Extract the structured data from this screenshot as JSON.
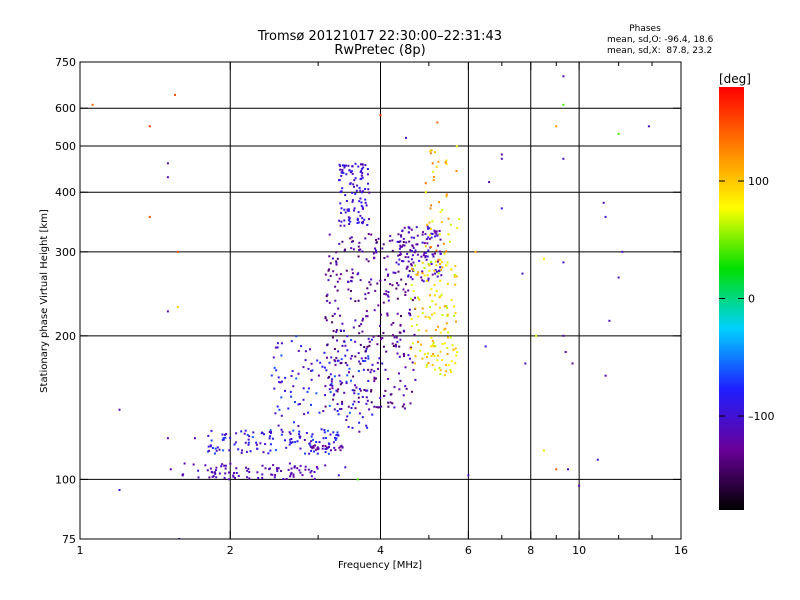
{
  "chart_data": {
    "type": "scatter",
    "title": "Tromsø 20121017 22:30:00–22:31:43",
    "subtitle": "RwPretec (8p)",
    "xlabel": "Frequency [MHz]",
    "ylabel": "Stationary phase Virtual Height [km]",
    "x_scale": "log",
    "y_scale": "log",
    "xlim": [
      1,
      16
    ],
    "ylim": [
      75,
      750
    ],
    "x_ticks": [
      1,
      2,
      4,
      6,
      8,
      10,
      16
    ],
    "x_tick_labels": [
      "1",
      "2",
      "4",
      "6",
      "8",
      "10",
      "16"
    ],
    "x_minor_ticks": [
      3,
      5,
      7,
      9,
      12,
      14
    ],
    "x_gridlines": [
      2,
      4,
      6,
      8,
      10
    ],
    "y_ticks": [
      75,
      100,
      200,
      300,
      400,
      500,
      600,
      750
    ],
    "y_tick_labels": [
      "75",
      "100",
      "200",
      "300",
      "400",
      "500",
      "600",
      "750"
    ],
    "y_gridlines": [
      100,
      200,
      300,
      400,
      500,
      600
    ],
    "grid": true,
    "stats": {
      "heading": "Phases",
      "line_o": "mean, sd,O: -96.4, 18.6",
      "line_x": "mean, sd,X:  87.8, 23.2"
    },
    "colorbar": {
      "label": "[deg]",
      "range": [
        -180,
        180
      ],
      "ticks": [
        100,
        0,
        -100
      ],
      "tick_labels": [
        "100",
        "0",
        "–100"
      ],
      "colormap": "rainbow",
      "stops": [
        "#000000",
        "#6a0099",
        "#1f1fff",
        "#00d0ff",
        "#00e000",
        "#ffff00",
        "#ff8000",
        "#ff0000"
      ]
    },
    "clusters": [
      {
        "count": 90,
        "fmin": 1.6,
        "fmax": 3.0,
        "hmin": 100,
        "hmax": 108,
        "pmin": -125,
        "pmax": -105
      },
      {
        "count": 120,
        "fmin": 1.8,
        "fmax": 3.3,
        "hmin": 113,
        "hmax": 127,
        "pmin": -120,
        "pmax": -60
      },
      {
        "count": 140,
        "fmin": 2.4,
        "fmax": 3.9,
        "hmin": 125,
        "hmax": 200,
        "pmin": -120,
        "pmax": -55
      },
      {
        "count": 330,
        "fmin": 3.1,
        "fmax": 4.7,
        "hmin": 140,
        "hmax": 330,
        "pmin": -150,
        "pmax": -100
      },
      {
        "count": 110,
        "fmin": 3.3,
        "fmax": 3.8,
        "hmin": 340,
        "hmax": 460,
        "pmin": -120,
        "pmax": -80
      },
      {
        "count": 110,
        "fmin": 4.3,
        "fmax": 5.3,
        "hmin": 260,
        "hmax": 340,
        "pmin": -130,
        "pmax": -90
      },
      {
        "count": 140,
        "fmin": 4.6,
        "fmax": 5.7,
        "hmin": 165,
        "hmax": 290,
        "pmin": 60,
        "pmax": 120
      },
      {
        "count": 45,
        "fmin": 4.9,
        "fmax": 5.8,
        "hmin": 280,
        "hmax": 500,
        "pmin": 60,
        "pmax": 140
      },
      {
        "count": 25,
        "fmin": 2.9,
        "fmax": 3.4,
        "hmin": 115,
        "hmax": 118,
        "pmin": -140,
        "pmax": -110
      }
    ],
    "isolated_points": [
      [
        1.06,
        610,
        140
      ],
      [
        1.2,
        95,
        -100
      ],
      [
        1.38,
        550,
        160
      ],
      [
        1.38,
        355,
        150
      ],
      [
        1.5,
        460,
        -120
      ],
      [
        1.5,
        430,
        -110
      ],
      [
        1.5,
        225,
        -120
      ],
      [
        1.5,
        122,
        -110
      ],
      [
        1.52,
        105,
        -120
      ],
      [
        1.55,
        640,
        150
      ],
      [
        1.57,
        300,
        150
      ],
      [
        1.57,
        230,
        100
      ],
      [
        1.58,
        75,
        -100
      ],
      [
        1.62,
        108,
        -120
      ],
      [
        1.7,
        122,
        -120
      ],
      [
        1.2,
        140,
        -120
      ],
      [
        3.1,
        107,
        -110
      ],
      [
        3.4,
        106,
        -100
      ],
      [
        3.6,
        100,
        40
      ],
      [
        3.3,
        102,
        -100
      ],
      [
        4.5,
        520,
        -110
      ],
      [
        4.0,
        580,
        160
      ],
      [
        5.2,
        560,
        140
      ],
      [
        6.0,
        102,
        -110
      ],
      [
        6.2,
        300,
        110
      ],
      [
        6.5,
        190,
        -100
      ],
      [
        7.0,
        480,
        -120
      ],
      [
        7.0,
        470,
        -110
      ],
      [
        7.0,
        370,
        -100
      ],
      [
        6.6,
        420,
        -120
      ],
      [
        7.7,
        270,
        -110
      ],
      [
        7.8,
        175,
        -110
      ],
      [
        8.2,
        200,
        70
      ],
      [
        8.5,
        290,
        80
      ],
      [
        8.5,
        115,
        90
      ],
      [
        9.0,
        105,
        150
      ],
      [
        9.0,
        550,
        120
      ],
      [
        9.3,
        700,
        -110
      ],
      [
        9.3,
        610,
        40
      ],
      [
        9.3,
        470,
        -110
      ],
      [
        9.3,
        285,
        -100
      ],
      [
        9.3,
        200,
        -110
      ],
      [
        9.4,
        185,
        -120
      ],
      [
        9.5,
        105,
        -110
      ],
      [
        9.7,
        175,
        -120
      ],
      [
        10.0,
        97,
        -120
      ],
      [
        11.2,
        380,
        -110
      ],
      [
        11.3,
        355,
        -100
      ],
      [
        11.5,
        215,
        -110
      ],
      [
        11.3,
        165,
        -120
      ],
      [
        12.2,
        300,
        -110
      ],
      [
        12.0,
        265,
        -110
      ],
      [
        12.0,
        530,
        40
      ],
      [
        13.8,
        550,
        -110
      ],
      [
        10.9,
        110,
        -100
      ]
    ]
  }
}
